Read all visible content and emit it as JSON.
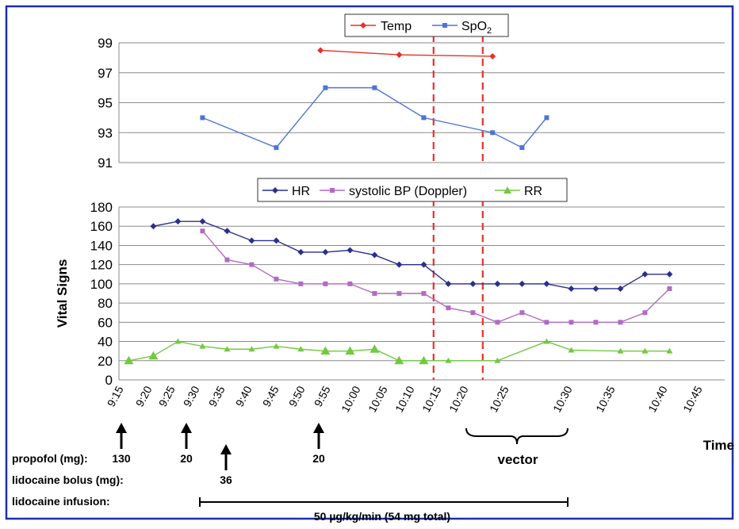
{
  "colors": {
    "frame": "#1a2fb0",
    "temp": "#e8302a",
    "spo2": "#4f74d6",
    "hr": "#2b2f8e",
    "bp": "#b36ac4",
    "rr": "#72c940",
    "vline": "#e8302a",
    "grid": "#8a8a8a"
  },
  "x_axis": {
    "label": "Time",
    "ticks": [
      "9:15",
      "9:20",
      "9:25",
      "9:30",
      "9:35",
      "9:40",
      "9:45",
      "9:50",
      "9:55",
      "10:00",
      "10:05",
      "10:10",
      "10:15",
      "10:20",
      "10:25",
      "10:30",
      "10:35",
      "10:40",
      "10:45"
    ]
  },
  "chart_data": [
    {
      "type": "line",
      "ylim": [
        91,
        99
      ],
      "yticks": [
        91,
        93,
        95,
        97,
        99
      ],
      "ylabel": "",
      "legend": "top-center",
      "series": [
        {
          "name": "Temp",
          "marker": "diamond",
          "points": [
            [
              "9:56",
              98.5
            ],
            [
              "10:12",
              98.2
            ],
            [
              "10:31",
              98.1
            ]
          ]
        },
        {
          "name": "SpO",
          "name_sub": "2",
          "marker": "square",
          "points": [
            [
              "9:32",
              94.0
            ],
            [
              "9:47",
              92.0
            ],
            [
              "9:57",
              96.0
            ],
            [
              "10:07",
              96.0
            ],
            [
              "10:17",
              94.0
            ],
            [
              "10:31",
              93.0
            ],
            [
              "10:37",
              92.0
            ],
            [
              "10:42",
              94.0
            ]
          ]
        }
      ],
      "vlines": [
        "10:19",
        "10:29"
      ]
    },
    {
      "type": "line",
      "ylim": [
        0,
        180
      ],
      "yticks": [
        0,
        20,
        40,
        60,
        80,
        100,
        120,
        140,
        160,
        180
      ],
      "ylabel": "Vital Signs",
      "legend": "top-center",
      "series": [
        {
          "name": "HR",
          "marker": "diamond",
          "points": [
            [
              "9:22",
              160
            ],
            [
              "9:27",
              165
            ],
            [
              "9:32",
              165
            ],
            [
              "9:37",
              155
            ],
            [
              "9:42",
              145
            ],
            [
              "9:47",
              145
            ],
            [
              "9:52",
              133
            ],
            [
              "9:57",
              133
            ],
            [
              "10:02",
              135
            ],
            [
              "10:07",
              130
            ],
            [
              "10:12",
              120
            ],
            [
              "10:17",
              120
            ],
            [
              "10:22",
              100
            ],
            [
              "10:27",
              100
            ],
            [
              "10:32",
              100
            ],
            [
              "10:37",
              100
            ],
            [
              "10:42",
              100
            ],
            [
              "10:47",
              95
            ],
            [
              "10:52",
              95
            ],
            [
              "10:57",
              95
            ],
            [
              "11:02",
              110
            ],
            [
              "11:07",
              110
            ]
          ]
        },
        {
          "name": "systolic BP (Doppler)",
          "marker": "square",
          "points": [
            [
              "9:32",
              155
            ],
            [
              "9:37",
              125
            ],
            [
              "9:42",
              120
            ],
            [
              "9:47",
              105
            ],
            [
              "9:52",
              100
            ],
            [
              "9:57",
              100
            ],
            [
              "10:02",
              100
            ],
            [
              "10:07",
              90
            ],
            [
              "10:12",
              90
            ],
            [
              "10:17",
              90
            ],
            [
              "10:22",
              75
            ],
            [
              "10:27",
              70
            ],
            [
              "10:32",
              60
            ],
            [
              "10:37",
              70
            ],
            [
              "10:42",
              60
            ],
            [
              "10:47",
              60
            ],
            [
              "10:52",
              60
            ],
            [
              "10:57",
              60
            ],
            [
              "11:02",
              70
            ],
            [
              "11:07",
              95
            ]
          ]
        },
        {
          "name": "RR",
          "marker": "triangle",
          "points": [
            [
              "9:17",
              20
            ],
            [
              "9:22",
              25
            ],
            [
              "9:27",
              40
            ],
            [
              "9:32",
              35
            ],
            [
              "9:37",
              32
            ],
            [
              "9:42",
              32
            ],
            [
              "9:47",
              35
            ],
            [
              "9:52",
              32
            ],
            [
              "9:57",
              30
            ],
            [
              "10:02",
              30
            ],
            [
              "10:07",
              32
            ],
            [
              "10:12",
              20
            ],
            [
              "10:17",
              20
            ],
            [
              "10:22",
              20
            ],
            [
              "10:32",
              20
            ],
            [
              "10:42",
              40
            ],
            [
              "10:47",
              31
            ],
            [
              "10:57",
              30
            ],
            [
              "11:02",
              30
            ],
            [
              "11:07",
              30
            ]
          ]
        }
      ],
      "vlines": [
        "10:19",
        "10:29"
      ]
    }
  ],
  "annotations": {
    "propofol_label": "propofol (mg):",
    "propofol_doses": [
      {
        "time": "9:15",
        "dose": "130"
      },
      {
        "time": "9:25",
        "dose": "20"
      },
      {
        "time": "9:50",
        "dose": "20"
      }
    ],
    "lidocaine_bolus_label": "lidocaine bolus (mg):",
    "lidocaine_bolus_doses": [
      {
        "time": "9:35",
        "dose": "36"
      }
    ],
    "lidocaine_infusion_label": "lidocaine infusion:",
    "lidocaine_infusion": {
      "start": "9:30",
      "end": "10:30",
      "text": "50 µg/kg/min (54 mg total)"
    },
    "vector_label": "vector",
    "vector_range": {
      "start": "10:20",
      "end": "10:30"
    }
  }
}
